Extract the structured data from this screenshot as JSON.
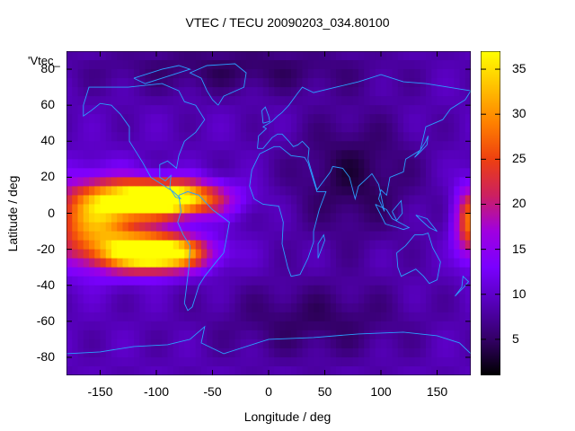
{
  "figure": {
    "title": "VTEC / TECU 20090203_034.80100",
    "legend_key": "'Vtec_",
    "colormap": [
      "#000000",
      "#330066",
      "#5500b8",
      "#7a00ff",
      "#a000e0",
      "#cc2060",
      "#ee4010",
      "#ff8000",
      "#ffc000",
      "#ffff00"
    ]
  },
  "chart_data": {
    "type": "heatmap",
    "title": "VTEC / TECU 20090203_034.80100",
    "xlabel": "Longitude / deg",
    "ylabel": "Latitude / deg",
    "xlim": [
      -180,
      180
    ],
    "ylim": [
      -90,
      90
    ],
    "x_ticks": [
      "-150",
      "-100",
      "-50",
      "0",
      "50",
      "100",
      "150"
    ],
    "x_tick_values": [
      -150,
      -100,
      -50,
      0,
      50,
      100,
      150
    ],
    "y_ticks": [
      "80",
      "60",
      "40",
      "20",
      "0",
      "-20",
      "-40",
      "-60",
      "-80"
    ],
    "y_tick_values": [
      80,
      60,
      40,
      20,
      0,
      -20,
      -40,
      -60,
      -80
    ],
    "colorbar": {
      "ticks": [
        "35",
        "30",
        "25",
        "20",
        "15",
        "10",
        "5"
      ],
      "tick_values": [
        35,
        30,
        25,
        20,
        15,
        10,
        5
      ],
      "range": [
        1,
        37
      ]
    },
    "background_level": 9,
    "features": [
      {
        "label": "equatorial anomaly crest north",
        "lon": -95,
        "lat": 8,
        "peak": 37,
        "sigma_lon": 35,
        "sigma_lat": 7
      },
      {
        "label": "equatorial anomaly crest south",
        "lon": -100,
        "lat": -22,
        "peak": 37,
        "sigma_lon": 30,
        "sigma_lat": 7
      },
      {
        "label": "equatorial band west",
        "lon": -155,
        "lat": -5,
        "peak": 22,
        "sigma_lon": 28,
        "sigma_lat": 16
      },
      {
        "label": "east edge enhancement",
        "lon": 180,
        "lat": -5,
        "peak": 19,
        "sigma_lon": 10,
        "sigma_lat": 14
      },
      {
        "label": "Asia night minimum",
        "lon": 75,
        "lat": 20,
        "peak": -5,
        "sigma_lon": 40,
        "sigma_lat": 25
      },
      {
        "label": "southern minimum",
        "lon": 40,
        "lat": -60,
        "peak": -4,
        "sigma_lon": 60,
        "sigma_lat": 15
      },
      {
        "label": "northern polar minimum",
        "lon": -30,
        "lat": 80,
        "peak": -4,
        "sigma_lon": 90,
        "sigma_lat": 10
      }
    ],
    "coastlines": [
      {
        "name": "north-america",
        "points": [
          [
            -165,
            60
          ],
          [
            -160,
            70
          ],
          [
            -140,
            70
          ],
          [
            -125,
            70
          ],
          [
            -95,
            72
          ],
          [
            -80,
            68
          ],
          [
            -75,
            62
          ],
          [
            -65,
            60
          ],
          [
            -57,
            52
          ],
          [
            -65,
            45
          ],
          [
            -75,
            40
          ],
          [
            -80,
            32
          ],
          [
            -82,
            25
          ],
          [
            -90,
            29
          ],
          [
            -97,
            27
          ],
          [
            -97,
            20
          ],
          [
            -92,
            18
          ],
          [
            -87,
            21
          ],
          [
            -88,
            14
          ],
          [
            -83,
            9
          ],
          [
            -78,
            8
          ],
          [
            -85,
            12
          ],
          [
            -95,
            16
          ],
          [
            -105,
            20
          ],
          [
            -112,
            28
          ],
          [
            -117,
            33
          ],
          [
            -124,
            40
          ],
          [
            -124,
            48
          ],
          [
            -132,
            55
          ],
          [
            -140,
            60
          ],
          [
            -150,
            61
          ],
          [
            -158,
            57
          ],
          [
            -165,
            54
          ],
          [
            -165,
            60
          ]
        ]
      },
      {
        "name": "greenland",
        "points": [
          [
            -45,
            60
          ],
          [
            -40,
            65
          ],
          [
            -22,
            70
          ],
          [
            -20,
            78
          ],
          [
            -30,
            83
          ],
          [
            -55,
            82
          ],
          [
            -70,
            78
          ],
          [
            -60,
            75
          ],
          [
            -55,
            68
          ],
          [
            -50,
            63
          ],
          [
            -45,
            60
          ]
        ]
      },
      {
        "name": "south-america",
        "points": [
          [
            -80,
            10
          ],
          [
            -72,
            12
          ],
          [
            -62,
            10
          ],
          [
            -50,
            2
          ],
          [
            -35,
            -5
          ],
          [
            -37,
            -12
          ],
          [
            -40,
            -22
          ],
          [
            -48,
            -28
          ],
          [
            -57,
            -35
          ],
          [
            -62,
            -40
          ],
          [
            -65,
            -46
          ],
          [
            -68,
            -52
          ],
          [
            -72,
            -54
          ],
          [
            -75,
            -50
          ],
          [
            -73,
            -40
          ],
          [
            -71,
            -30
          ],
          [
            -70,
            -18
          ],
          [
            -76,
            -12
          ],
          [
            -81,
            -5
          ],
          [
            -78,
            1
          ],
          [
            -80,
            10
          ]
        ]
      },
      {
        "name": "africa",
        "points": [
          [
            -17,
            15
          ],
          [
            -15,
            24
          ],
          [
            -8,
            33
          ],
          [
            5,
            37
          ],
          [
            10,
            37
          ],
          [
            20,
            32
          ],
          [
            32,
            31
          ],
          [
            35,
            28
          ],
          [
            43,
            12
          ],
          [
            51,
            12
          ],
          [
            45,
            2
          ],
          [
            40,
            -10
          ],
          [
            40,
            -16
          ],
          [
            35,
            -25
          ],
          [
            28,
            -34
          ],
          [
            20,
            -35
          ],
          [
            17,
            -30
          ],
          [
            12,
            -17
          ],
          [
            13,
            -5
          ],
          [
            9,
            4
          ],
          [
            -5,
            5
          ],
          [
            -13,
            8
          ],
          [
            -17,
            15
          ]
        ]
      },
      {
        "name": "eurasia",
        "points": [
          [
            -10,
            36
          ],
          [
            -9,
            43
          ],
          [
            -2,
            47
          ],
          [
            -5,
            48
          ],
          [
            3,
            51
          ],
          [
            8,
            54
          ],
          [
            12,
            56
          ],
          [
            18,
            60
          ],
          [
            25,
            66
          ],
          [
            30,
            70
          ],
          [
            40,
            67
          ],
          [
            60,
            70
          ],
          [
            80,
            73
          ],
          [
            100,
            77
          ],
          [
            120,
            73
          ],
          [
            140,
            72
          ],
          [
            160,
            70
          ],
          [
            180,
            68
          ],
          [
            175,
            63
          ],
          [
            162,
            58
          ],
          [
            155,
            52
          ],
          [
            140,
            48
          ],
          [
            135,
            35
          ],
          [
            122,
            30
          ],
          [
            120,
            23
          ],
          [
            108,
            20
          ],
          [
            105,
            10
          ],
          [
            100,
            13
          ],
          [
            98,
            8
          ],
          [
            103,
            1
          ],
          [
            98,
            16
          ],
          [
            92,
            22
          ],
          [
            80,
            15
          ],
          [
            77,
            8
          ],
          [
            72,
            20
          ],
          [
            66,
            25
          ],
          [
            57,
            26
          ],
          [
            55,
            23
          ],
          [
            43,
            13
          ],
          [
            35,
            30
          ],
          [
            36,
            36
          ],
          [
            30,
            40
          ],
          [
            26,
            38
          ],
          [
            22,
            37
          ],
          [
            18,
            40
          ],
          [
            12,
            44
          ],
          [
            8,
            44
          ],
          [
            3,
            42
          ],
          [
            -5,
            36
          ],
          [
            -10,
            36
          ]
        ]
      },
      {
        "name": "australia",
        "points": [
          [
            114,
            -22
          ],
          [
            122,
            -18
          ],
          [
            130,
            -12
          ],
          [
            137,
            -12
          ],
          [
            142,
            -11
          ],
          [
            146,
            -19
          ],
          [
            153,
            -27
          ],
          [
            150,
            -37
          ],
          [
            143,
            -39
          ],
          [
            138,
            -35
          ],
          [
            131,
            -31
          ],
          [
            118,
            -35
          ],
          [
            115,
            -30
          ],
          [
            114,
            -22
          ]
        ]
      },
      {
        "name": "antarctica",
        "points": [
          [
            -180,
            -78
          ],
          [
            -150,
            -77
          ],
          [
            -120,
            -74
          ],
          [
            -90,
            -73
          ],
          [
            -70,
            -70
          ],
          [
            -57,
            -63
          ],
          [
            -60,
            -72
          ],
          [
            -40,
            -78
          ],
          [
            0,
            -70
          ],
          [
            40,
            -69
          ],
          [
            80,
            -67
          ],
          [
            120,
            -66
          ],
          [
            150,
            -68
          ],
          [
            170,
            -72
          ],
          [
            180,
            -78
          ]
        ]
      },
      {
        "name": "uk",
        "points": [
          [
            -5,
            50
          ],
          [
            1,
            51
          ],
          [
            0,
            54
          ],
          [
            -3,
            59
          ],
          [
            -6,
            57
          ],
          [
            -5,
            50
          ]
        ]
      },
      {
        "name": "japan",
        "points": [
          [
            130,
            31
          ],
          [
            135,
            34
          ],
          [
            141,
            38
          ],
          [
            142,
            43
          ],
          [
            140,
            40
          ],
          [
            135,
            35
          ],
          [
            130,
            31
          ]
        ]
      },
      {
        "name": "madagascar",
        "points": [
          [
            44,
            -25
          ],
          [
            50,
            -15
          ],
          [
            49,
            -12
          ],
          [
            44,
            -17
          ],
          [
            44,
            -25
          ]
        ]
      },
      {
        "name": "new-zealand",
        "points": [
          [
            166,
            -46
          ],
          [
            174,
            -41
          ],
          [
            178,
            -38
          ],
          [
            173,
            -35
          ],
          [
            172,
            -41
          ],
          [
            166,
            -46
          ]
        ]
      },
      {
        "name": "indonesia",
        "points": [
          [
            95,
            5
          ],
          [
            104,
            -6
          ],
          [
            115,
            -8
          ],
          [
            120,
            -9
          ],
          [
            125,
            -8
          ],
          [
            110,
            -3
          ],
          [
            105,
            2
          ],
          [
            95,
            5
          ]
        ]
      },
      {
        "name": "borneo-png",
        "points": [
          [
            110,
            1
          ],
          [
            118,
            7
          ],
          [
            119,
            0
          ],
          [
            114,
            -4
          ],
          [
            110,
            1
          ]
        ]
      },
      {
        "name": "new-guinea",
        "points": [
          [
            131,
            -1
          ],
          [
            141,
            -3
          ],
          [
            150,
            -10
          ],
          [
            143,
            -8
          ],
          [
            136,
            -4
          ],
          [
            131,
            -1
          ]
        ]
      },
      {
        "name": "arctic-islands",
        "points": [
          [
            -120,
            75
          ],
          [
            -95,
            80
          ],
          [
            -80,
            82
          ],
          [
            -70,
            80
          ],
          [
            -90,
            76
          ],
          [
            -110,
            72
          ],
          [
            -120,
            75
          ]
        ]
      }
    ]
  }
}
